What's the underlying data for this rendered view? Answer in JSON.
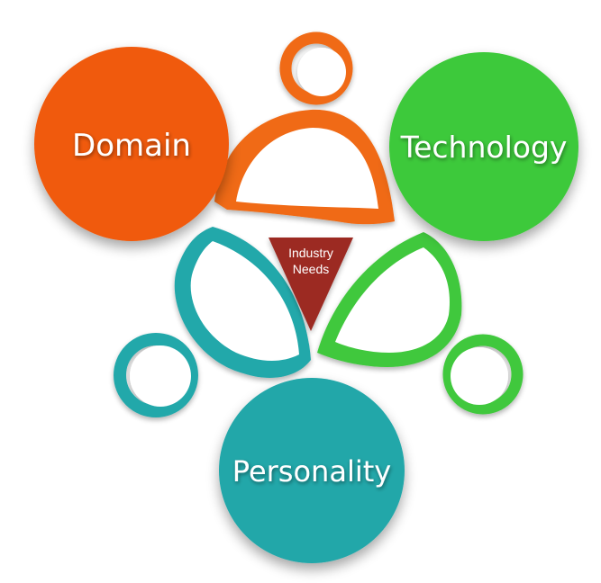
{
  "nodes": {
    "domain": {
      "label": "Domain",
      "color": "#f05a0a"
    },
    "technology": {
      "label": "Technology",
      "color": "#3ec93b"
    },
    "personality": {
      "label": "Personality",
      "color": "#20a7a9"
    }
  },
  "center": {
    "line1": "Industry",
    "line2": "Needs",
    "color": "#9c2b24"
  },
  "person_icons": {
    "orange": {
      "icon": "person-icon",
      "color": "#f06a12"
    },
    "teal": {
      "icon": "person-icon",
      "color": "#22a8aa"
    },
    "green": {
      "icon": "person-icon",
      "color": "#3fc83c"
    }
  }
}
